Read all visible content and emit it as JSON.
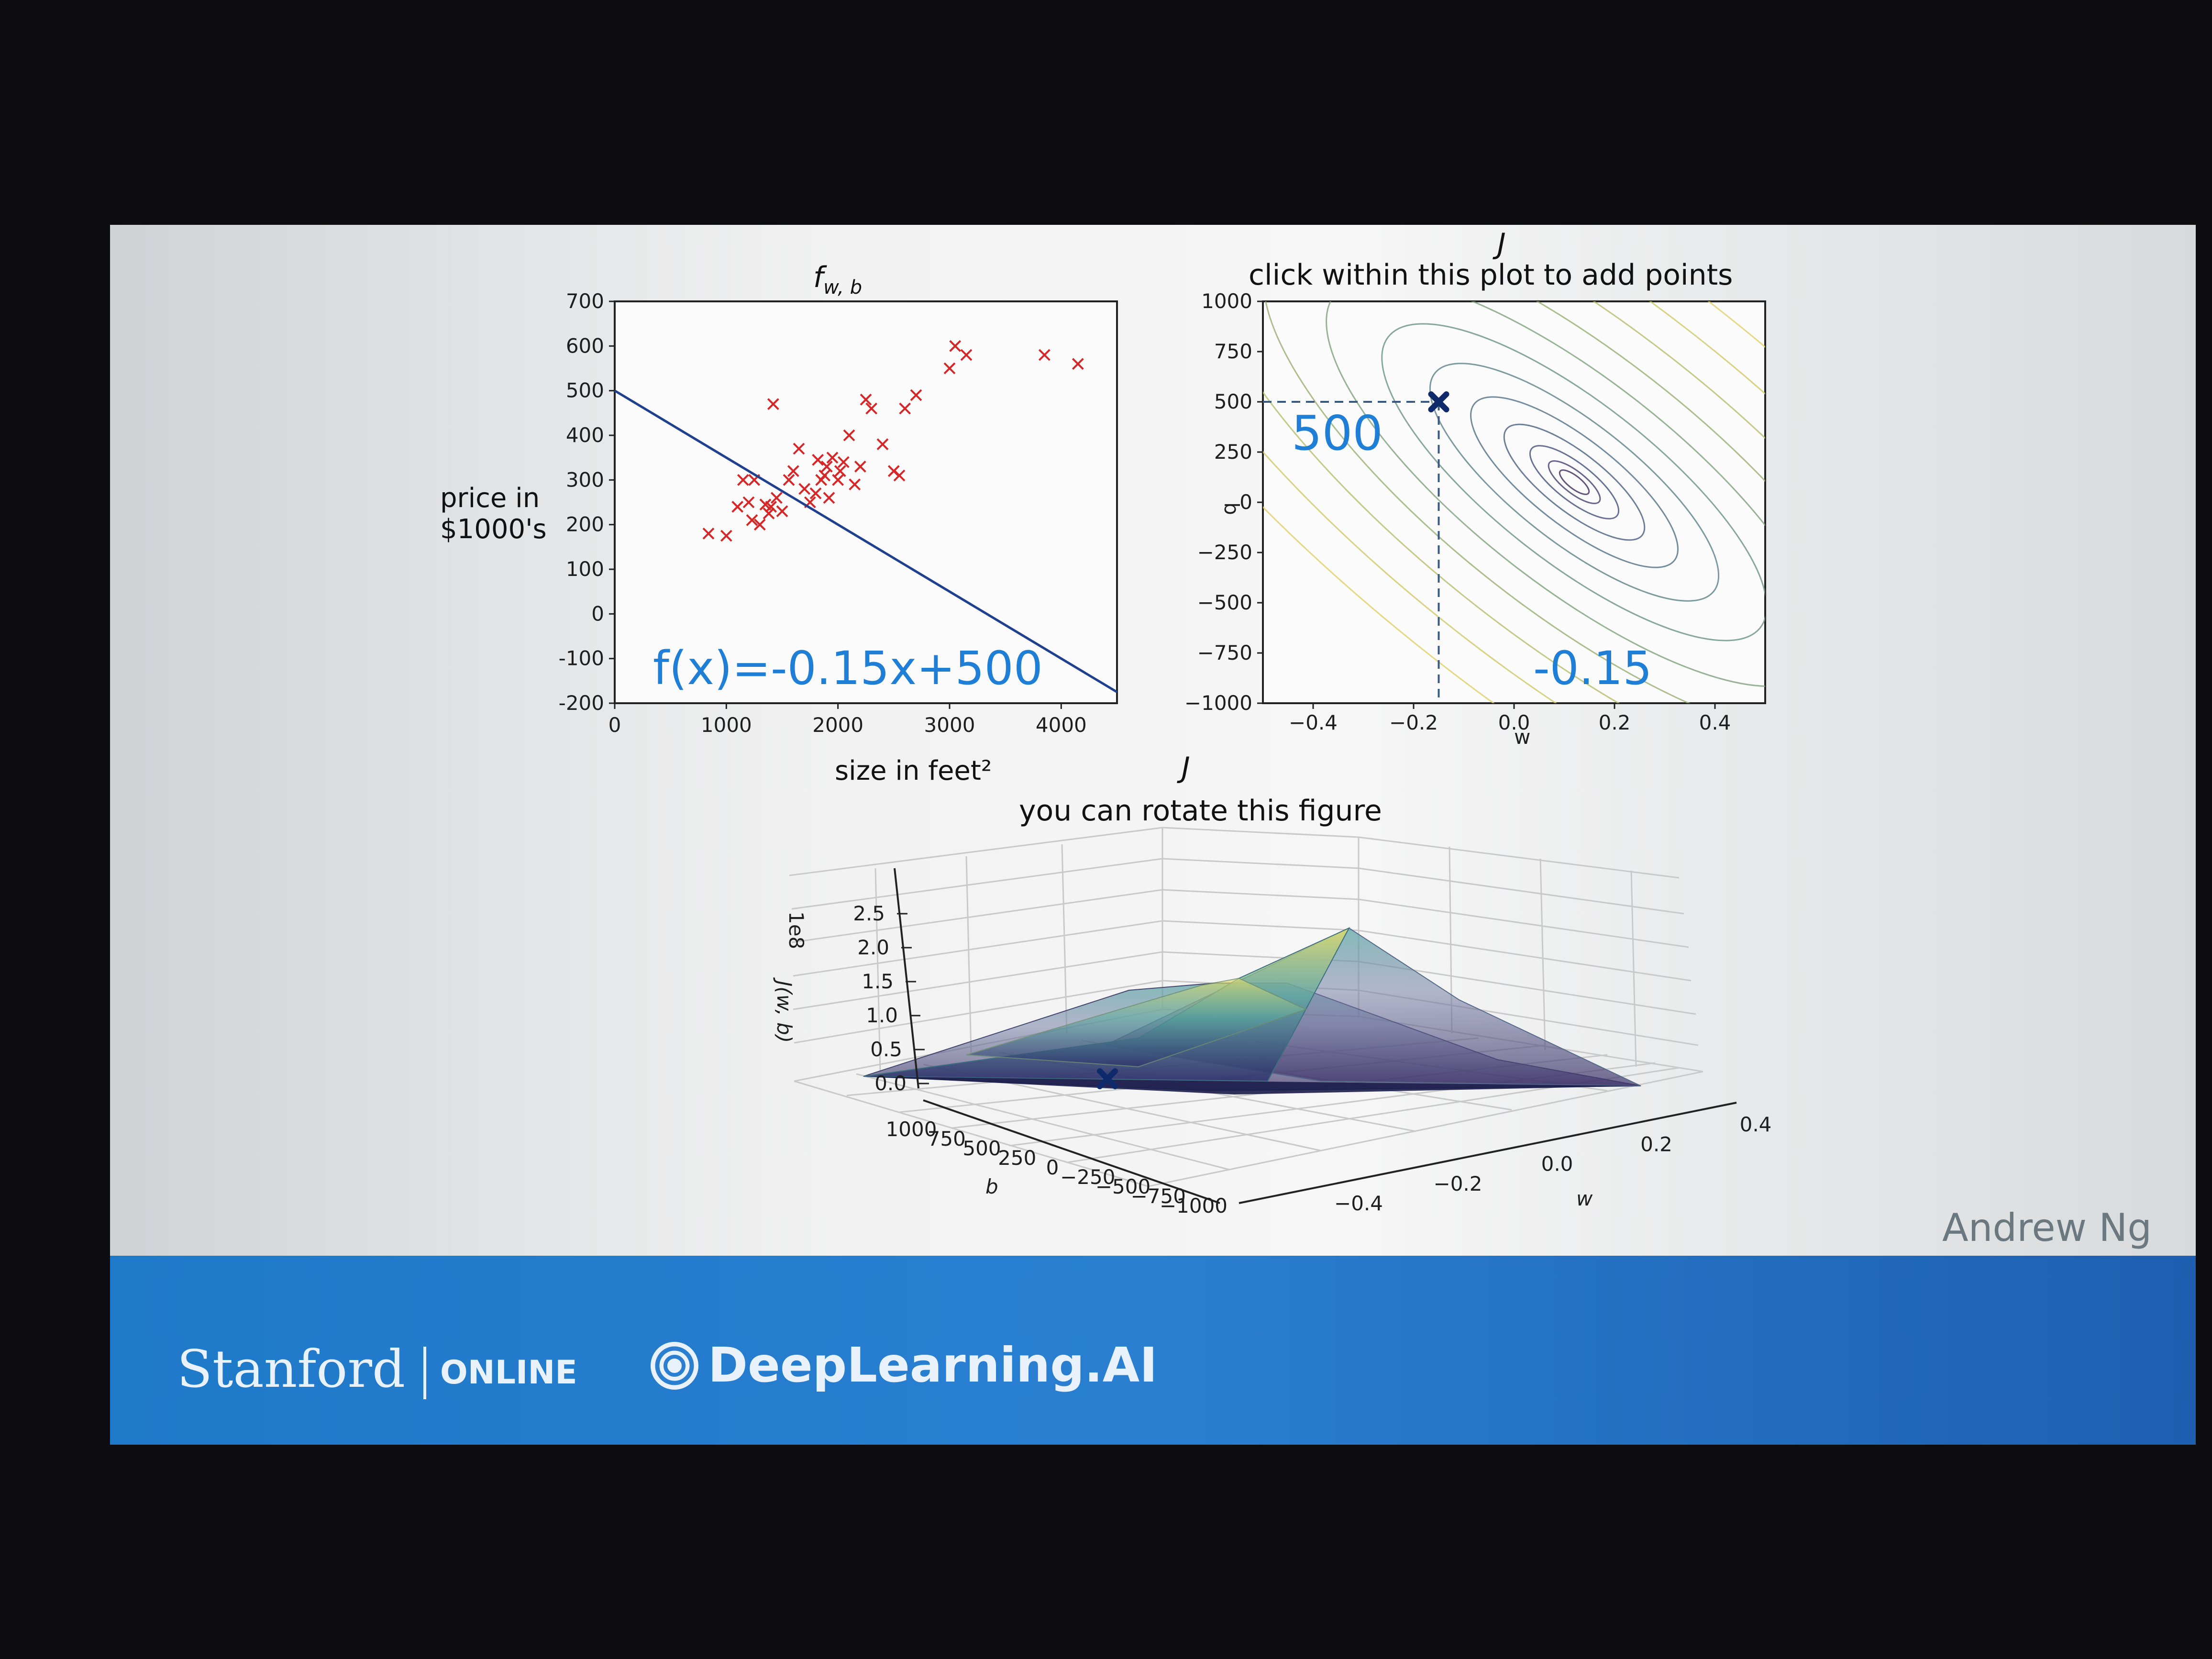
{
  "chart_data": [
    {
      "id": "scatter",
      "type": "scatter",
      "title": "f",
      "title_sub": "w, b",
      "xlabel": "size in feet²",
      "ylabel_line1": "price in",
      "ylabel_line2": "$1000's",
      "xlim": [
        0,
        4500
      ],
      "ylim": [
        -200,
        700
      ],
      "xticks": [
        0,
        1000,
        2000,
        3000,
        4000
      ],
      "yticks": [
        -200,
        -100,
        0,
        100,
        200,
        300,
        400,
        500,
        600,
        700
      ],
      "marker_color": "#d62728",
      "line_color": "#1f3f8f",
      "line": {
        "w": -0.15,
        "b": 500
      },
      "annotation": "f(x)=-0.15x+500",
      "points": [
        [
          840,
          180
        ],
        [
          1000,
          175
        ],
        [
          1100,
          240
        ],
        [
          1150,
          300
        ],
        [
          1200,
          250
        ],
        [
          1230,
          210
        ],
        [
          1250,
          300
        ],
        [
          1300,
          200
        ],
        [
          1350,
          245
        ],
        [
          1380,
          225
        ],
        [
          1400,
          240
        ],
        [
          1420,
          470
        ],
        [
          1450,
          260
        ],
        [
          1500,
          230
        ],
        [
          1560,
          300
        ],
        [
          1600,
          320
        ],
        [
          1650,
          370
        ],
        [
          1700,
          280
        ],
        [
          1750,
          250
        ],
        [
          1800,
          270
        ],
        [
          1820,
          345
        ],
        [
          1850,
          300
        ],
        [
          1880,
          310
        ],
        [
          1900,
          330
        ],
        [
          1920,
          260
        ],
        [
          1950,
          350
        ],
        [
          2000,
          300
        ],
        [
          2020,
          320
        ],
        [
          2050,
          340
        ],
        [
          2100,
          400
        ],
        [
          2150,
          290
        ],
        [
          2200,
          330
        ],
        [
          2250,
          480
        ],
        [
          2300,
          460
        ],
        [
          2400,
          380
        ],
        [
          2500,
          320
        ],
        [
          2550,
          310
        ],
        [
          2600,
          460
        ],
        [
          2700,
          490
        ],
        [
          3000,
          550
        ],
        [
          3050,
          600
        ],
        [
          3150,
          580
        ],
        [
          3850,
          580
        ],
        [
          4150,
          560
        ]
      ]
    },
    {
      "id": "contour",
      "type": "contour",
      "title": "click within this plot to add points",
      "title_above": "J",
      "xlabel": "w",
      "ylabel": "b",
      "xlim": [
        -0.5,
        0.5
      ],
      "ylim": [
        -1000,
        1000
      ],
      "xticks": [
        -0.4,
        -0.2,
        0.0,
        0.2,
        0.4
      ],
      "xtick_labels": [
        "−0.4",
        "−0.2",
        "0.0",
        "0.2",
        "0.4"
      ],
      "yticks": [
        -1000,
        -750,
        -500,
        -250,
        0,
        250,
        500,
        750,
        1000
      ],
      "ytick_labels": [
        "−1000",
        "−750",
        "−500",
        "−250",
        "0",
        "250",
        "500",
        "750",
        "1000"
      ],
      "minimum": {
        "w": 0.12,
        "b": 100
      },
      "marked_point": {
        "w": -0.15,
        "b": 500
      },
      "annotation_b": "500",
      "annotation_w": "-0.15"
    },
    {
      "id": "surface",
      "type": "surface",
      "title": "you can rotate this figure",
      "title_above": "J",
      "zlabel": "J(w, b)",
      "zscale_label": "1e8",
      "zticks": [
        "0.0",
        "0.5",
        "1.0",
        "1.5",
        "2.0",
        "2.5"
      ],
      "b_label": "b",
      "b_ticks": [
        "1000",
        "750",
        "500",
        "250",
        "0",
        "−250",
        "−500",
        "−750",
        "−1000"
      ],
      "w_label": "w",
      "w_ticks": [
        "−0.4",
        "−0.2",
        "0.0",
        "0.2",
        "0.4"
      ],
      "marked_point": {
        "w": -0.15,
        "b": 500
      }
    }
  ],
  "footer": {
    "stanford": "Stanford",
    "online": "ONLINE",
    "deeplearning": "DeepLearning.AI"
  },
  "author": "Andrew Ng",
  "colors": {
    "footer_blue": "#2a7fd1",
    "marker_red": "#d62728",
    "handwriting_blue": "#1f7fd6",
    "mark_navy": "#0e2a6b"
  }
}
